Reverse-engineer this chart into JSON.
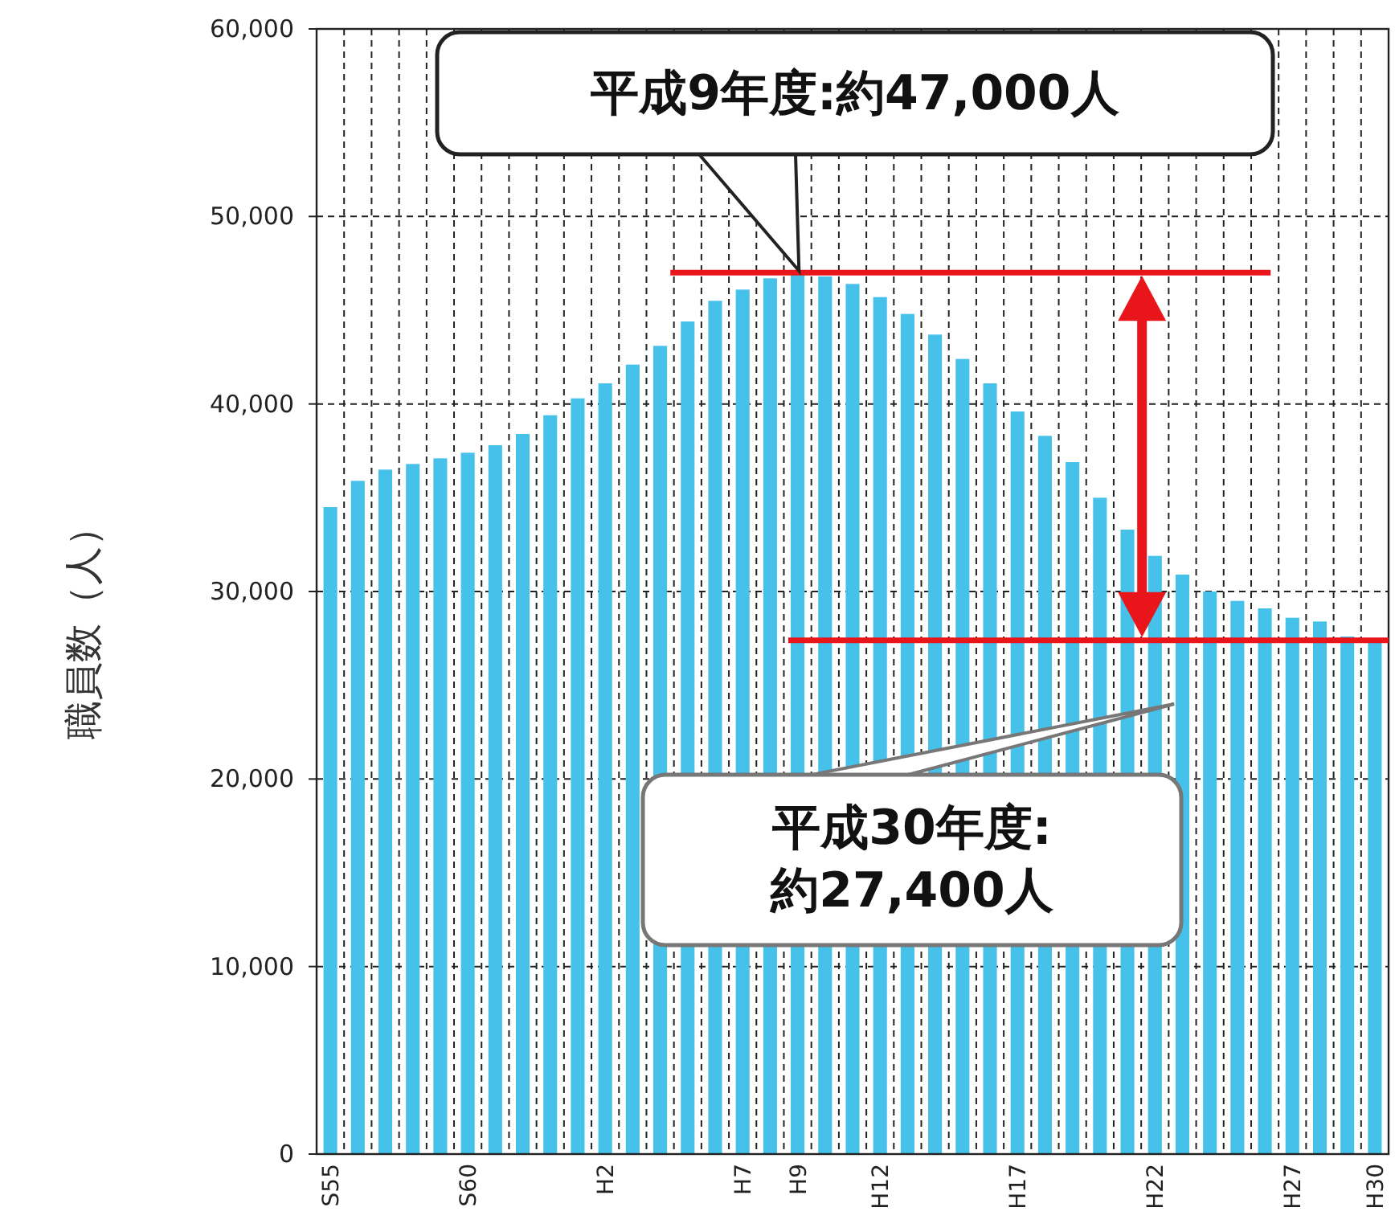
{
  "chart_data": {
    "type": "bar",
    "ylabel": "職員数（人）",
    "categories": [
      "S55",
      null,
      null,
      null,
      null,
      "S60",
      null,
      null,
      null,
      null,
      "H2",
      null,
      null,
      null,
      null,
      "H7",
      null,
      "H9",
      null,
      null,
      "H12",
      null,
      null,
      null,
      null,
      "H17",
      null,
      null,
      null,
      null,
      "H22",
      null,
      null,
      null,
      null,
      "H27",
      null,
      null,
      "H30"
    ],
    "values": [
      34500,
      35900,
      36500,
      36800,
      37100,
      37400,
      37800,
      38400,
      39400,
      40300,
      41100,
      42100,
      43100,
      44400,
      45500,
      46100,
      46700,
      47000,
      46800,
      46400,
      45700,
      44800,
      43700,
      42400,
      41100,
      39600,
      38300,
      36900,
      35000,
      33300,
      31900,
      30900,
      30000,
      29500,
      29100,
      28600,
      28400,
      27600,
      27400
    ],
    "color": "#45c1ea",
    "ylim": [
      0,
      60000
    ],
    "yticks": [
      {
        "value": 0,
        "label": "0"
      },
      {
        "value": 10000,
        "label": "10,000"
      },
      {
        "value": 20000,
        "label": "20,000"
      },
      {
        "value": 30000,
        "label": "30,000"
      },
      {
        "value": 40000,
        "label": "40,000"
      },
      {
        "value": 50000,
        "label": "50,000"
      },
      {
        "value": 60000,
        "label": "60,000"
      }
    ],
    "grid": true,
    "ref_lines": [
      {
        "axis": "y",
        "value": 47000,
        "color": "#e8151b"
      },
      {
        "axis": "y",
        "value": 27400,
        "color": "#e8151b"
      }
    ],
    "annotations": [
      "平成9年度:約47,000人",
      "平成30年度: 約27,400人"
    ]
  }
}
